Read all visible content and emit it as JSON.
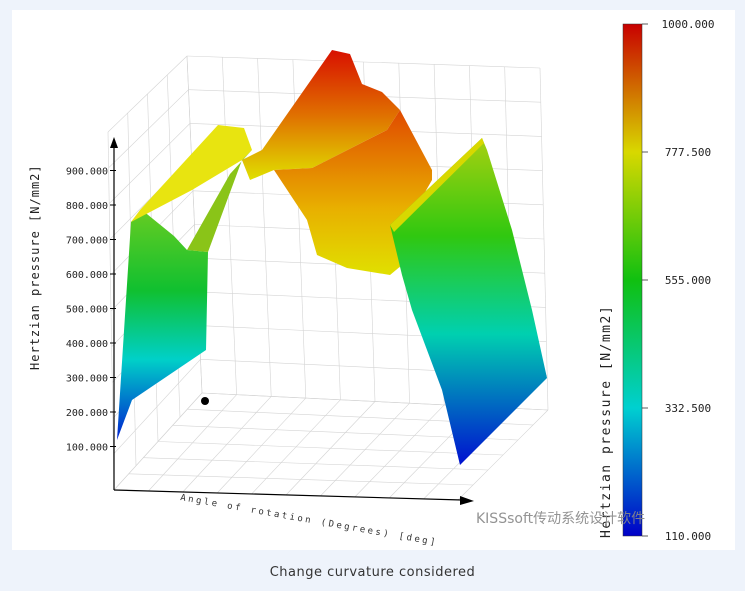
{
  "caption": "Change curvature considered",
  "watermark": "KISSsoft传动系统设计软件",
  "chart_data": {
    "type": "surface-3d",
    "zlabel": "Hertzian pressure [N/mm2]",
    "xlabel": "Angle of rotation (Degrees) [deg]",
    "z_ticks": [
      100,
      200,
      300,
      400,
      500,
      600,
      700,
      800,
      900
    ],
    "z_tick_labels": [
      "100.000",
      "200.000",
      "300.000",
      "400.000",
      "500.000",
      "600.000",
      "700.000",
      "800.000",
      "900.000"
    ],
    "colorbar": {
      "title": "Hertzian pressure [N/mm2]",
      "min": 110,
      "max": 1000,
      "tick_labels": [
        "1000.000",
        "777.500",
        "555.000",
        "332.500",
        "110.000"
      ],
      "tick_values": [
        1000,
        777.5,
        555,
        332.5,
        110
      ]
    },
    "grid": true
  }
}
